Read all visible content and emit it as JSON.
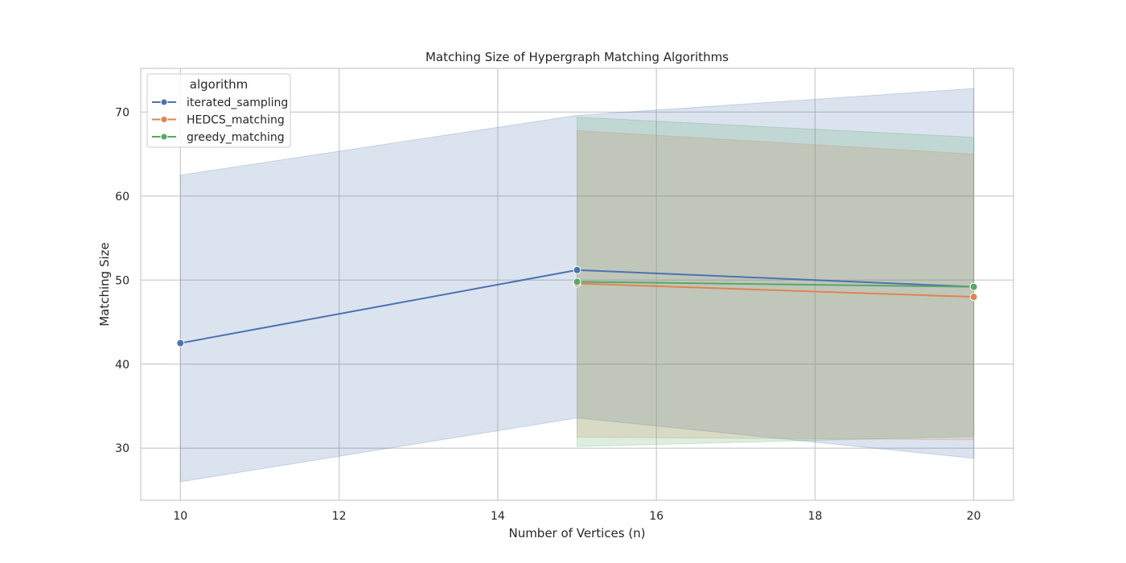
{
  "chart_data": {
    "type": "line",
    "title": "Matching Size of Hypergraph Matching Algorithms",
    "xlabel": "Number of Vertices (n)",
    "ylabel": "Matching Size",
    "xlim": [
      9.5,
      20.5
    ],
    "ylim": [
      23.8,
      75.2
    ],
    "xticks": [
      10,
      12,
      14,
      16,
      18,
      20
    ],
    "yticks": [
      30,
      40,
      50,
      60,
      70
    ],
    "grid": true,
    "legend": {
      "title": "algorithm",
      "placement": "top-left"
    },
    "series": [
      {
        "name": "iterated_sampling",
        "color": "#4c72b0",
        "x": [
          10,
          15,
          20
        ],
        "y": [
          42.5,
          51.2,
          49.2
        ],
        "ci_lower": [
          26.0,
          33.6,
          28.8
        ],
        "ci_upper": [
          62.5,
          69.6,
          72.8
        ]
      },
      {
        "name": "HEDCS_matching",
        "color": "#dd8452",
        "x": [
          15,
          20
        ],
        "y": [
          49.6,
          48.0
        ],
        "ci_lower": [
          31.3,
          31.0
        ],
        "ci_upper": [
          67.8,
          65.0
        ]
      },
      {
        "name": "greedy_matching",
        "color": "#55a868",
        "x": [
          15,
          20
        ],
        "y": [
          49.8,
          49.2
        ],
        "ci_lower": [
          30.2,
          31.4
        ],
        "ci_upper": [
          69.4,
          67.0
        ]
      }
    ]
  }
}
